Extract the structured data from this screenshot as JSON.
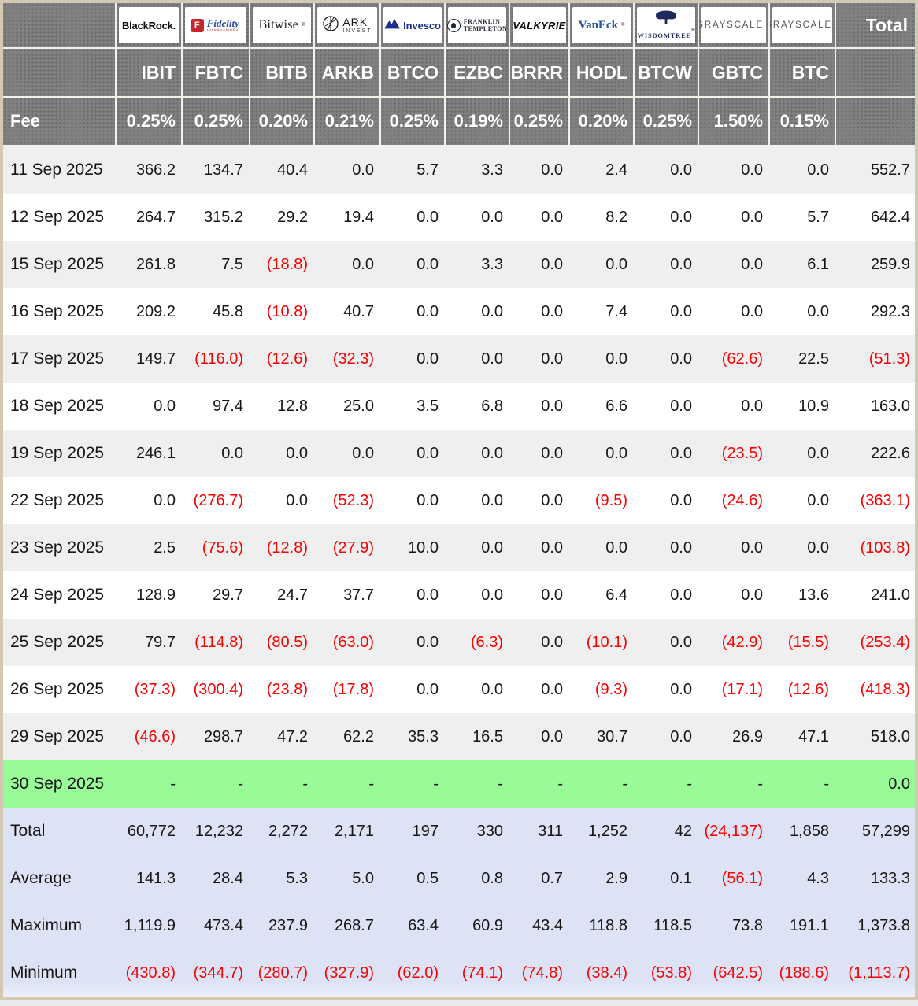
{
  "chart_data": {
    "type": "table",
    "fee_label": "Fee",
    "total_label": "Total",
    "columns": [
      {
        "provider": "BlackRock",
        "ticker": "IBIT",
        "fee": "0.25%",
        "logo": {
          "style": "blackrock",
          "text": "BlackRock."
        }
      },
      {
        "provider": "Fidelity",
        "ticker": "FBTC",
        "fee": "0.25%",
        "logo": {
          "style": "fidelity",
          "badge": "F",
          "text": "Fidelity",
          "sub": "INTERNATIONAL"
        }
      },
      {
        "provider": "Bitwise",
        "ticker": "BITB",
        "fee": "0.20%",
        "logo": {
          "style": "bitwise",
          "text": "Bitwise",
          "mark": "®"
        }
      },
      {
        "provider": "ARK Invest",
        "ticker": "ARKB",
        "fee": "0.21%",
        "logo": {
          "style": "ark",
          "text": "ARK",
          "sub": "INVEST"
        }
      },
      {
        "provider": "Invesco",
        "ticker": "BTCO",
        "fee": "0.25%",
        "logo": {
          "style": "invesco",
          "text": "Invesco"
        }
      },
      {
        "provider": "Franklin Templeton",
        "ticker": "EZBC",
        "fee": "0.19%",
        "logo": {
          "style": "franklin",
          "line1": "FRANKLIN",
          "line2": "TEMPLETON"
        }
      },
      {
        "provider": "Valkyrie",
        "ticker": "BRRR",
        "fee": "0.25%",
        "logo": {
          "style": "valkyrie",
          "text": "VALKYRIE"
        }
      },
      {
        "provider": "VanEck",
        "ticker": "HODL",
        "fee": "0.20%",
        "logo": {
          "style": "vaneck",
          "text": "VanEck",
          "mark": "®"
        }
      },
      {
        "provider": "WisdomTree",
        "ticker": "BTCW",
        "fee": "0.25%",
        "logo": {
          "style": "wisdomtree",
          "text": "WISDOMTREE",
          "mark": "®"
        }
      },
      {
        "provider": "Grayscale",
        "ticker": "GBTC",
        "fee": "1.50%",
        "logo": {
          "style": "grayscale",
          "text": "GRAYSCALE",
          "mark": "™"
        }
      },
      {
        "provider": "Grayscale",
        "ticker": "BTC",
        "fee": "0.15%",
        "logo": {
          "style": "grayscale",
          "text": "GRAYSCALE",
          "mark": "™"
        }
      }
    ],
    "rows": [
      {
        "date": "11 Sep 2025",
        "values": [
          "366.2",
          "134.7",
          "40.4",
          "0.0",
          "5.7",
          "3.3",
          "0.0",
          "2.4",
          "0.0",
          "0.0",
          "0.0"
        ],
        "total": "552.7"
      },
      {
        "date": "12 Sep 2025",
        "values": [
          "264.7",
          "315.2",
          "29.2",
          "19.4",
          "0.0",
          "0.0",
          "0.0",
          "8.2",
          "0.0",
          "0.0",
          "5.7"
        ],
        "total": "642.4"
      },
      {
        "date": "15 Sep 2025",
        "values": [
          "261.8",
          "7.5",
          "(18.8)",
          "0.0",
          "0.0",
          "3.3",
          "0.0",
          "0.0",
          "0.0",
          "0.0",
          "6.1"
        ],
        "total": "259.9"
      },
      {
        "date": "16 Sep 2025",
        "values": [
          "209.2",
          "45.8",
          "(10.8)",
          "40.7",
          "0.0",
          "0.0",
          "0.0",
          "7.4",
          "0.0",
          "0.0",
          "0.0"
        ],
        "total": "292.3"
      },
      {
        "date": "17 Sep 2025",
        "values": [
          "149.7",
          "(116.0)",
          "(12.6)",
          "(32.3)",
          "0.0",
          "0.0",
          "0.0",
          "0.0",
          "0.0",
          "(62.6)",
          "22.5"
        ],
        "total": "(51.3)"
      },
      {
        "date": "18 Sep 2025",
        "values": [
          "0.0",
          "97.4",
          "12.8",
          "25.0",
          "3.5",
          "6.8",
          "0.0",
          "6.6",
          "0.0",
          "0.0",
          "10.9"
        ],
        "total": "163.0"
      },
      {
        "date": "19 Sep 2025",
        "values": [
          "246.1",
          "0.0",
          "0.0",
          "0.0",
          "0.0",
          "0.0",
          "0.0",
          "0.0",
          "0.0",
          "(23.5)",
          "0.0"
        ],
        "total": "222.6"
      },
      {
        "date": "22 Sep 2025",
        "values": [
          "0.0",
          "(276.7)",
          "0.0",
          "(52.3)",
          "0.0",
          "0.0",
          "0.0",
          "(9.5)",
          "0.0",
          "(24.6)",
          "0.0"
        ],
        "total": "(363.1)"
      },
      {
        "date": "23 Sep 2025",
        "values": [
          "2.5",
          "(75.6)",
          "(12.8)",
          "(27.9)",
          "10.0",
          "0.0",
          "0.0",
          "0.0",
          "0.0",
          "0.0",
          "0.0"
        ],
        "total": "(103.8)"
      },
      {
        "date": "24 Sep 2025",
        "values": [
          "128.9",
          "29.7",
          "24.7",
          "37.7",
          "0.0",
          "0.0",
          "0.0",
          "6.4",
          "0.0",
          "0.0",
          "13.6"
        ],
        "total": "241.0"
      },
      {
        "date": "25 Sep 2025",
        "values": [
          "79.7",
          "(114.8)",
          "(80.5)",
          "(63.0)",
          "0.0",
          "(6.3)",
          "0.0",
          "(10.1)",
          "0.0",
          "(42.9)",
          "(15.5)"
        ],
        "total": "(253.4)"
      },
      {
        "date": "26 Sep 2025",
        "values": [
          "(37.3)",
          "(300.4)",
          "(23.8)",
          "(17.8)",
          "0.0",
          "0.0",
          "0.0",
          "(9.3)",
          "0.0",
          "(17.1)",
          "(12.6)"
        ],
        "total": "(418.3)"
      },
      {
        "date": "29 Sep 2025",
        "values": [
          "(46.6)",
          "298.7",
          "47.2",
          "62.2",
          "35.3",
          "16.5",
          "0.0",
          "30.7",
          "0.0",
          "26.9",
          "47.1"
        ],
        "total": "518.0"
      },
      {
        "date": "30 Sep 2025",
        "values": [
          "-",
          "-",
          "-",
          "-",
          "-",
          "-",
          "-",
          "-",
          "-",
          "-",
          "-"
        ],
        "total": "0.0",
        "highlight": "green"
      }
    ],
    "summary_rows": [
      {
        "label": "Total",
        "values": [
          "60,772",
          "12,232",
          "2,272",
          "2,171",
          "197",
          "330",
          "311",
          "1,252",
          "42",
          "(24,137)",
          "1,858"
        ],
        "total": "57,299"
      },
      {
        "label": "Average",
        "values": [
          "141.3",
          "28.4",
          "5.3",
          "5.0",
          "0.5",
          "0.8",
          "0.7",
          "2.9",
          "0.1",
          "(56.1)",
          "4.3"
        ],
        "total": "133.3"
      },
      {
        "label": "Maximum",
        "values": [
          "1,119.9",
          "473.4",
          "237.9",
          "268.7",
          "63.4",
          "60.9",
          "43.4",
          "118.8",
          "118.5",
          "73.8",
          "191.1"
        ],
        "total": "1,373.8"
      },
      {
        "label": "Minimum",
        "values": [
          "(430.8)",
          "(344.7)",
          "(280.7)",
          "(327.9)",
          "(62.0)",
          "(74.1)",
          "(74.8)",
          "(38.4)",
          "(53.8)",
          "(642.5)",
          "(188.6)"
        ],
        "total": "(1,113.7)"
      }
    ],
    "colors": {
      "header_gray": "#818181",
      "separator": "#f4f1ea",
      "row_stripe": "#efefef",
      "row_white": "#ffffff",
      "highlight_green": "#98fb98",
      "summary_blue": "#dde3f5",
      "negative_red": "#f80000",
      "border_tan": "#d3c9b2",
      "page_bg": "#e9e9ee",
      "text": "#161616"
    }
  }
}
